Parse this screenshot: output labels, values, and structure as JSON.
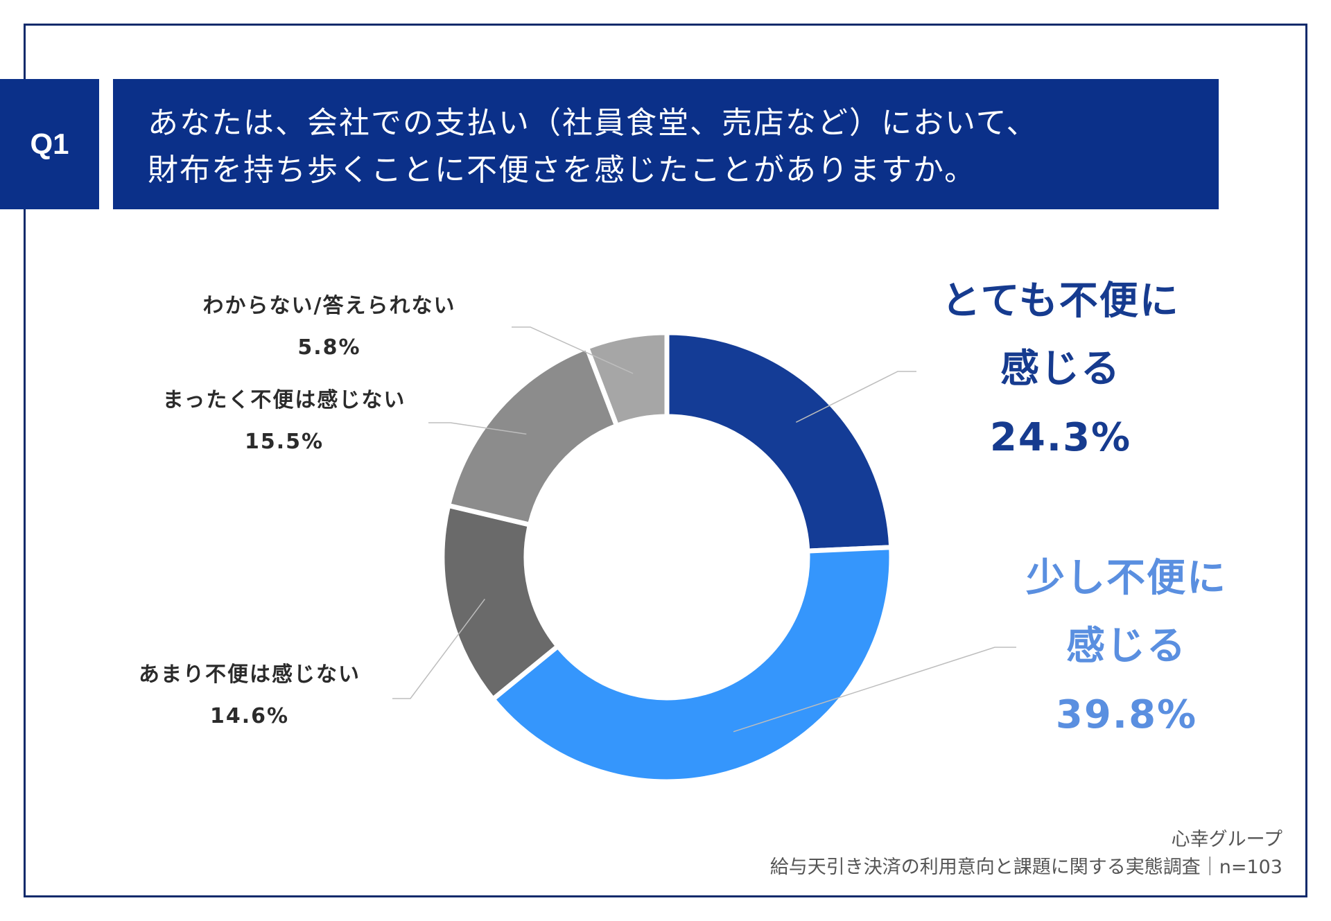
{
  "question": {
    "badge": "Q1",
    "line1": "あなたは、会社での支払い（社員食堂、売店など）において、",
    "line2": "財布を持ち歩くことに不便さを感じたことがありますか。"
  },
  "chart_data": {
    "type": "pie",
    "variant": "donut",
    "series": [
      {
        "name": "とても不便に感じる",
        "label_line1": "とても不便に",
        "label_line2": "感じる",
        "value": 24.3,
        "value_label": "24.3%",
        "color": "#143c96"
      },
      {
        "name": "少し不便に感じる",
        "label_line1": "少し不便に",
        "label_line2": "感じる",
        "value": 39.8,
        "value_label": "39.8%",
        "color": "#3596fc"
      },
      {
        "name": "あまり不便は感じない",
        "value": 14.6,
        "value_label": "14.6%",
        "color": "#6a6a6a"
      },
      {
        "name": "まったく不便は感じない",
        "value": 15.5,
        "value_label": "15.5%",
        "color": "#8c8c8c"
      },
      {
        "name": "わからない/答えられない",
        "value": 5.8,
        "value_label": "5.8%",
        "color": "#a6a6a6"
      }
    ],
    "label_colors": {
      "very": "#163b8f",
      "somewhat": "#5a8fe0"
    }
  },
  "source": {
    "org": "心幸グループ",
    "survey": "給与天引き決済の利用意向と課題に関する実態調査｜n=103"
  }
}
